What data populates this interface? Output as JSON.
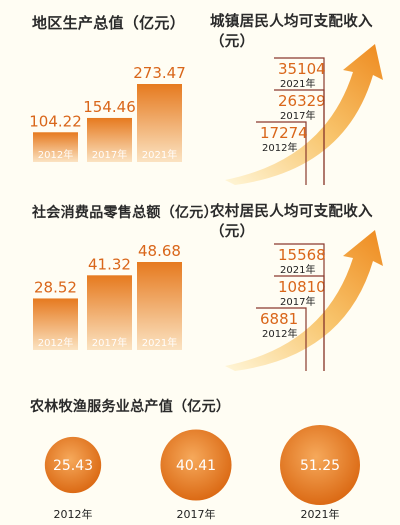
{
  "colors": {
    "bar_top": "#e67a1f",
    "bar_bottom": "#fbe3c2",
    "value_text": "#d9661a",
    "line": "#8a3a2e",
    "year_text": "#222222",
    "circle_inner": "#f6a95b",
    "circle_outer": "#d9650f"
  },
  "chart_data": [
    {
      "type": "bar",
      "title": "地区生产总值（亿元）",
      "categories": [
        "2012年",
        "2017年",
        "2021年"
      ],
      "values": [
        104.22,
        154.46,
        273.47
      ],
      "value_labels": [
        "104.22",
        "154.46",
        "273.47"
      ]
    },
    {
      "type": "line",
      "title": "城镇居民人均可支配收入（元）",
      "categories": [
        "2012年",
        "2017年",
        "2021年"
      ],
      "values": [
        17274,
        26329,
        35104
      ],
      "value_labels": [
        "17274",
        "26329",
        "35104"
      ]
    },
    {
      "type": "bar",
      "title": "社会消费品零售总额（亿元）",
      "categories": [
        "2012年",
        "2017年",
        "2021年"
      ],
      "values": [
        28.52,
        41.32,
        48.68
      ],
      "value_labels": [
        "28.52",
        "41.32",
        "48.68"
      ]
    },
    {
      "type": "line",
      "title": "农村居民人均可支配收入（元）",
      "categories": [
        "2012年",
        "2017年",
        "2021年"
      ],
      "values": [
        6881,
        10810,
        15568
      ],
      "value_labels": [
        "6881",
        "10810",
        "15568"
      ]
    },
    {
      "type": "bubble",
      "title": "农林牧渔服务业总产值（亿元）",
      "categories": [
        "2012年",
        "2017年",
        "2021年"
      ],
      "values": [
        25.43,
        40.41,
        51.25
      ],
      "value_labels": [
        "25.43",
        "40.41",
        "51.25"
      ]
    }
  ]
}
